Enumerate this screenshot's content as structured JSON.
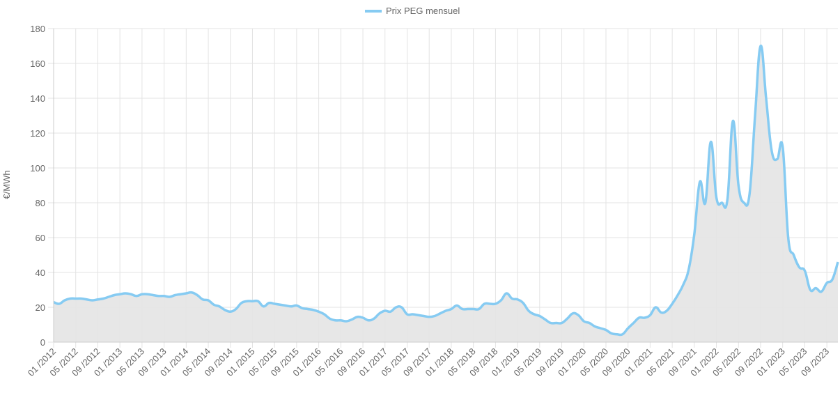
{
  "chart_data": {
    "type": "line",
    "y_label": "€/MWh",
    "categories": [
      "01 /2012",
      null,
      null,
      null,
      "05 /2012",
      null,
      null,
      null,
      "09 /2012",
      null,
      null,
      null,
      "01 /2013",
      null,
      null,
      null,
      "05 /2013",
      null,
      null,
      null,
      "09 /2013",
      null,
      null,
      null,
      "01 /2014",
      null,
      null,
      null,
      "05 /2014",
      null,
      null,
      null,
      "09 /2014",
      null,
      null,
      null,
      "01 /2015",
      null,
      null,
      null,
      "05 /2015",
      null,
      null,
      null,
      "09 /2015",
      null,
      null,
      null,
      "01 /2016",
      null,
      null,
      null,
      "05 /2016",
      null,
      null,
      null,
      "09 /2016",
      null,
      null,
      null,
      "01 /2017",
      null,
      null,
      null,
      "05 /2017",
      null,
      null,
      null,
      "09 /2017",
      null,
      null,
      null,
      "01 /2018",
      null,
      null,
      null,
      "05 /2018",
      null,
      null,
      null,
      "09 /2018",
      null,
      null,
      null,
      "01 /2019",
      null,
      null,
      null,
      "05 /2019",
      null,
      null,
      null,
      "09 /2019",
      null,
      null,
      null,
      "01 /2020",
      null,
      null,
      null,
      "05 /2020",
      null,
      null,
      null,
      "09 /2020",
      null,
      null,
      null,
      "01 /2021",
      null,
      null,
      null,
      "05 /2021",
      null,
      null,
      null,
      "09 /2021",
      null,
      null,
      null,
      "01 /2022",
      null,
      null,
      null,
      "05 /2022",
      null,
      null,
      null,
      "09 /2022",
      null,
      null,
      null,
      "01 /2023",
      null,
      null,
      null,
      "05 /2023",
      null,
      null,
      null,
      "09 /2023",
      null,
      null
    ],
    "series": [
      {
        "name": "Prix PEG mensuel",
        "color": "#86cbf2",
        "fill": "#e4e4e4",
        "values": [
          23,
          22,
          24,
          25,
          25,
          25,
          24.5,
          24,
          24.5,
          25,
          26,
          27,
          27.5,
          28,
          27.5,
          26.5,
          27.5,
          27.5,
          27,
          26.5,
          26.5,
          26,
          27,
          27.5,
          28,
          28.5,
          27,
          24.5,
          24,
          21.5,
          20.5,
          18.5,
          17.5,
          19,
          22.5,
          23.5,
          23.5,
          23.5,
          20.5,
          22.5,
          22,
          21.5,
          21,
          20.5,
          21,
          19.5,
          19,
          18.5,
          17.5,
          16,
          13.5,
          12.5,
          12.5,
          12,
          13,
          14.5,
          14,
          12.5,
          13.5,
          16.5,
          18,
          17.5,
          20,
          20,
          16,
          16,
          15.5,
          15,
          14.5,
          15,
          16.5,
          18,
          19,
          21,
          19,
          19,
          19,
          19,
          22,
          22,
          22,
          24,
          28,
          25,
          24.5,
          22.5,
          18,
          16,
          15,
          13,
          11,
          11,
          11,
          13.5,
          16.5,
          15.5,
          12,
          11,
          9,
          8,
          7,
          5,
          4.5,
          4.5,
          8,
          11,
          14,
          14,
          15.5,
          20,
          17,
          18,
          22,
          27,
          33,
          42,
          62,
          92,
          80,
          115,
          83,
          80,
          82,
          127,
          90,
          80,
          85,
          130,
          170,
          140,
          110,
          105,
          112,
          60,
          50,
          43,
          41,
          30,
          31,
          29,
          34,
          36,
          46
        ]
      }
    ],
    "ylim": [
      0,
      180
    ],
    "yticks": [
      0,
      20,
      40,
      60,
      80,
      100,
      120,
      140,
      160,
      180
    ],
    "grid": true,
    "legend": "top"
  }
}
